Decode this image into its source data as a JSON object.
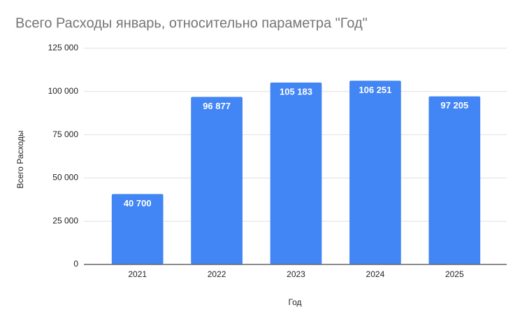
{
  "chart_data": {
    "type": "bar",
    "title": "Всего Расходы январь, относительно параметра \"Год\"",
    "x_label": "Год",
    "y_label": "Всего Расходы",
    "categories": [
      "2021",
      "2022",
      "2023",
      "2024",
      "2025"
    ],
    "values": [
      40700,
      96877,
      105183,
      106251,
      97205
    ],
    "value_labels": [
      "40 700",
      "96 877",
      "105 183",
      "106 251",
      "97 205"
    ],
    "color": "#4285f4",
    "ylim": [
      0,
      125000
    ],
    "yticks": [
      0,
      {
        "value": 25000,
        "label": "25 000"
      },
      {
        "value": 50000,
        "label": "50 000"
      },
      {
        "value": 75000,
        "label": "75 000"
      },
      {
        "value": 100000,
        "label": "100 000"
      },
      {
        "value": 125000,
        "label": "125 000"
      }
    ],
    "grid": true
  }
}
